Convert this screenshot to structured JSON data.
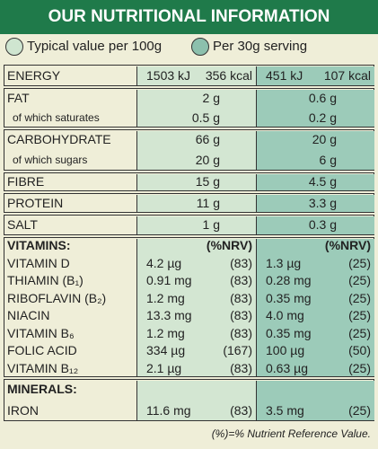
{
  "header": {
    "title": "OUR NUTRITIONAL INFORMATION"
  },
  "legend": [
    "Typical value per 100g",
    "Per 30g serving"
  ],
  "table": {
    "groups": [
      {
        "rows": [
          {
            "label": "ENERGY",
            "per_100g": [
              "1503 kJ",
              "356 kcal"
            ],
            "per_30g": [
              "451 kJ",
              "107 kcal"
            ]
          }
        ]
      },
      {
        "rows": [
          {
            "label": "FAT",
            "per_100g": "2 g",
            "per_30g": "0.6 g"
          },
          {
            "label": "of which saturates",
            "per_100g": "0.5 g",
            "per_30g": "0.2 g"
          }
        ]
      },
      {
        "rows": [
          {
            "label": "CARBOHYDRATE",
            "per_100g": "66 g",
            "per_30g": "20 g"
          },
          {
            "label": "of which sugars",
            "per_100g": "20 g",
            "per_30g": "6 g"
          }
        ]
      },
      {
        "rows": [
          {
            "label": "FIBRE",
            "per_100g": "15 g",
            "per_30g": "4.5 g"
          }
        ]
      },
      {
        "rows": [
          {
            "label": "PROTEIN",
            "per_100g": "11 g",
            "per_30g": "3.3 g"
          }
        ]
      },
      {
        "rows": [
          {
            "label": "SALT",
            "per_100g": "1 g",
            "per_30g": "0.3 g"
          }
        ]
      },
      {
        "rows": [
          {
            "label": "VITAMINS:",
            "nrv_heading": [
              "(%NRV)",
              "(%NRV)"
            ]
          },
          {
            "label": "VITAMIN D",
            "per_100g": [
              "4.2 µg",
              "(83)"
            ],
            "per_30g": [
              "1.3 µg",
              "(25)"
            ]
          },
          {
            "label": "THIAMIN (B₁)",
            "per_100g": [
              "0.91 mg",
              "(83)"
            ],
            "per_30g": [
              "0.28 mg",
              "(25)"
            ]
          },
          {
            "label": "RIBOFLAVIN (B₂)",
            "per_100g": [
              "1.2 mg",
              "(83)"
            ],
            "per_30g": [
              "0.35 mg",
              "(25)"
            ]
          },
          {
            "label": "NIACIN",
            "per_100g": [
              "13.3 mg",
              "(83)"
            ],
            "per_30g": [
              "4.0 mg",
              "(25)"
            ]
          },
          {
            "label": "VITAMIN B₆",
            "per_100g": [
              "1.2 mg",
              "(83)"
            ],
            "per_30g": [
              "0.35 mg",
              "(25)"
            ]
          },
          {
            "label": "FOLIC ACID",
            "per_100g": [
              "334 µg",
              "(167)"
            ],
            "per_30g": [
              "100 µg",
              "(50)"
            ]
          },
          {
            "label": "VITAMIN B₁₂",
            "per_100g": [
              "2.1 µg",
              "(83)"
            ],
            "per_30g": [
              "0.63 µg",
              "(25)"
            ]
          }
        ]
      },
      {
        "rows": [
          {
            "label": "MINERALS:"
          },
          {
            "label": "IRON",
            "per_100g": [
              "11.6 mg",
              "(83)"
            ],
            "per_30g": [
              "3.5 mg",
              "(25)"
            ]
          }
        ]
      }
    ]
  },
  "footnote": "(%)=% Nutrient Reference Value."
}
